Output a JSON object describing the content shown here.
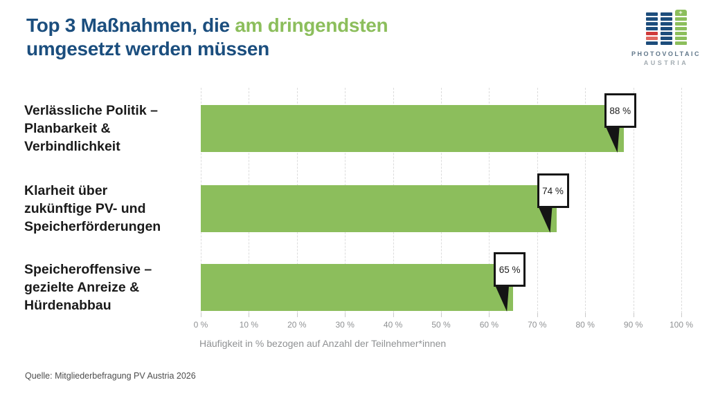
{
  "title": {
    "part1": "Top 3 Maßnahmen, die ",
    "highlight": "am dringendsten",
    "part2": "umgesetzt werden müssen"
  },
  "logo": {
    "wordmark_line1": "PHOTOVOLTAIC",
    "wordmark_line2": "AUSTRIA",
    "plus_glyph": "+",
    "columns": [
      {
        "cap": false,
        "stripes": [
          "#1d4d7c",
          "#1d4d7c",
          "#1d4d7c",
          "#1d4d7c",
          "#cf3b3b",
          "#e0675f",
          "#1d4d7c"
        ]
      },
      {
        "cap": false,
        "stripes": [
          "#1d4d7c",
          "#1d4d7c",
          "#1d4d7c",
          "#1d4d7c",
          "#1d4d7c",
          "#1d4d7c",
          "#1d4d7c"
        ]
      },
      {
        "cap": true,
        "cap_color": "#8cbe5c",
        "stripes": [
          "#8cbe5c",
          "#8cbe5c",
          "#8cbe5c",
          "#8cbe5c",
          "#8cbe5c",
          "#8cbe5c"
        ]
      }
    ]
  },
  "chart_data": {
    "type": "bar",
    "orientation": "horizontal",
    "title": "Top 3 Maßnahmen, die am dringendsten umgesetzt werden müssen",
    "categories": [
      "Verlässliche Politik – Planbarkeit & Verbindlichkeit",
      "Klarheit über zukünftige PV- und Speicherförderungen",
      "Speicheroffensive – gezielte Anreize & Hürdenabbau"
    ],
    "category_lines": [
      [
        "Verlässliche Politik –",
        "Planbarkeit &",
        "Verbindlichkeit"
      ],
      [
        "Klarheit über",
        "zukünftige PV- und",
        "Speicherförderungen"
      ],
      [
        "Speicheroffensive –",
        "gezielte Anreize &",
        "Hürdenabbau"
      ]
    ],
    "values": [
      88,
      74,
      65
    ],
    "value_labels": [
      "88 %",
      "74 %",
      "65 %"
    ],
    "xlabel": "Häufigkeit in % bezogen auf Anzahl der Teilnehmer*innen",
    "xlim": [
      0,
      100
    ],
    "xticks": [
      0,
      10,
      20,
      30,
      40,
      50,
      60,
      70,
      80,
      90,
      100
    ],
    "xtick_labels": [
      "0 %",
      "10 %",
      "20 %",
      "30 %",
      "40 %",
      "50 %",
      "60 %",
      "70 %",
      "80 %",
      "90 %",
      "100 %"
    ],
    "grid": "vertical-dashed",
    "legend": "none",
    "bar_color": "#8cbe5c"
  },
  "source": "Quelle: Mitgliederbefragung PV Austria 2026",
  "colors": {
    "title_blue": "#1b4e7e",
    "accent_green": "#8cbe5c",
    "bar_green": "#8cbe5c",
    "category_text": "#1a1a1a",
    "axis_gray": "#8f9193",
    "grid_gray": "#dcdcdc",
    "callout_border": "#161616",
    "source_gray": "#4d4d4d",
    "logo_blue": "#1d4d7c",
    "logo_red": "#cf3b3b",
    "logo_text_dark": "#5f7689",
    "logo_text_light": "#a3acb2"
  }
}
